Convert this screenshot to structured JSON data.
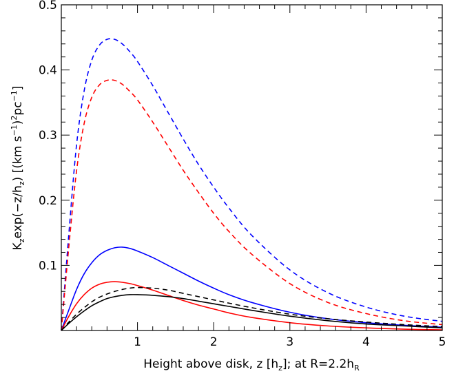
{
  "chart_data": {
    "type": "line",
    "title": "",
    "xlabel": {
      "before": "Height above disk, z [h",
      "sub1": "z",
      "middle": "]; at R=2.2h",
      "sub2": "R"
    },
    "ylabel": {
      "p1": "K",
      "s1": "z",
      "p2": "exp(−z/h",
      "s2": "z",
      "p3": ") [(km s",
      "e1": "−1",
      "p4": ")",
      "e2": "2",
      "p5": "pc",
      "e3": "−1",
      "p6": "]"
    },
    "xlim": [
      0,
      5
    ],
    "ylim": [
      0,
      0.5
    ],
    "xticks": [
      1,
      2,
      3,
      4,
      5
    ],
    "yticks": [
      0.1,
      0.2,
      0.3,
      0.4,
      0.5
    ],
    "grid": false,
    "legend": "none",
    "series": [
      {
        "color": "#0000ff",
        "dash": "dashed",
        "x": [
          0,
          0.1,
          0.2,
          0.3,
          0.4,
          0.5,
          0.6,
          0.7,
          0.8,
          0.9,
          1.0,
          1.2,
          1.4,
          1.6,
          1.8,
          2.0,
          2.2,
          2.5,
          3.0,
          3.5,
          4.0,
          4.5,
          5.0
        ],
        "y": [
          0,
          0.15,
          0.285,
          0.368,
          0.415,
          0.438,
          0.447,
          0.447,
          0.44,
          0.428,
          0.413,
          0.376,
          0.335,
          0.294,
          0.255,
          0.22,
          0.188,
          0.146,
          0.093,
          0.058,
          0.036,
          0.022,
          0.014
        ]
      },
      {
        "color": "#ff0000",
        "dash": "dashed",
        "x": [
          0,
          0.1,
          0.2,
          0.3,
          0.4,
          0.5,
          0.6,
          0.7,
          0.8,
          0.9,
          1.0,
          1.2,
          1.4,
          1.6,
          1.8,
          2.0,
          2.2,
          2.5,
          3.0,
          3.5,
          4.0,
          4.5,
          5.0
        ],
        "y": [
          0,
          0.13,
          0.245,
          0.318,
          0.358,
          0.377,
          0.384,
          0.384,
          0.378,
          0.367,
          0.354,
          0.32,
          0.283,
          0.246,
          0.212,
          0.18,
          0.152,
          0.117,
          0.072,
          0.043,
          0.026,
          0.015,
          0.009
        ]
      },
      {
        "color": "#0000ff",
        "dash": "solid",
        "x": [
          0,
          0.1,
          0.2,
          0.3,
          0.4,
          0.5,
          0.6,
          0.7,
          0.8,
          0.9,
          1.0,
          1.2,
          1.4,
          1.6,
          1.8,
          2.0,
          2.2,
          2.5,
          3.0,
          3.5,
          4.0,
          4.5,
          5.0
        ],
        "y": [
          0,
          0.032,
          0.063,
          0.087,
          0.104,
          0.116,
          0.123,
          0.127,
          0.128,
          0.126,
          0.122,
          0.112,
          0.1,
          0.088,
          0.076,
          0.065,
          0.055,
          0.043,
          0.028,
          0.018,
          0.012,
          0.008,
          0.005
        ]
      },
      {
        "color": "#ff0000",
        "dash": "solid",
        "x": [
          0,
          0.1,
          0.2,
          0.3,
          0.4,
          0.5,
          0.6,
          0.7,
          0.8,
          0.9,
          1.0,
          1.2,
          1.4,
          1.6,
          1.8,
          2.0,
          2.2,
          2.5,
          3.0,
          3.5,
          4.0,
          4.5,
          5.0
        ],
        "y": [
          0,
          0.022,
          0.041,
          0.055,
          0.065,
          0.071,
          0.074,
          0.075,
          0.074,
          0.072,
          0.069,
          0.062,
          0.054,
          0.046,
          0.039,
          0.033,
          0.027,
          0.02,
          0.012,
          0.007,
          0.004,
          0.002,
          0.001
        ]
      },
      {
        "color": "#000000",
        "dash": "dashed",
        "x": [
          0,
          0.1,
          0.2,
          0.3,
          0.4,
          0.5,
          0.6,
          0.7,
          0.8,
          0.9,
          1.0,
          1.2,
          1.4,
          1.6,
          1.8,
          2.0,
          2.2,
          2.5,
          3.0,
          3.5,
          4.0,
          4.5,
          5.0
        ],
        "y": [
          0,
          0.013,
          0.025,
          0.035,
          0.044,
          0.051,
          0.056,
          0.06,
          0.063,
          0.065,
          0.066,
          0.065,
          0.062,
          0.057,
          0.052,
          0.047,
          0.042,
          0.035,
          0.025,
          0.018,
          0.013,
          0.009,
          0.006
        ]
      },
      {
        "color": "#000000",
        "dash": "solid",
        "x": [
          0,
          0.1,
          0.2,
          0.3,
          0.4,
          0.5,
          0.6,
          0.7,
          0.8,
          0.9,
          1.0,
          1.2,
          1.4,
          1.6,
          1.8,
          2.0,
          2.2,
          2.5,
          3.0,
          3.5,
          4.0,
          4.5,
          5.0
        ],
        "y": [
          0,
          0.011,
          0.021,
          0.03,
          0.038,
          0.044,
          0.049,
          0.052,
          0.054,
          0.055,
          0.055,
          0.054,
          0.052,
          0.049,
          0.045,
          0.041,
          0.037,
          0.031,
          0.022,
          0.015,
          0.01,
          0.007,
          0.004
        ]
      }
    ]
  }
}
